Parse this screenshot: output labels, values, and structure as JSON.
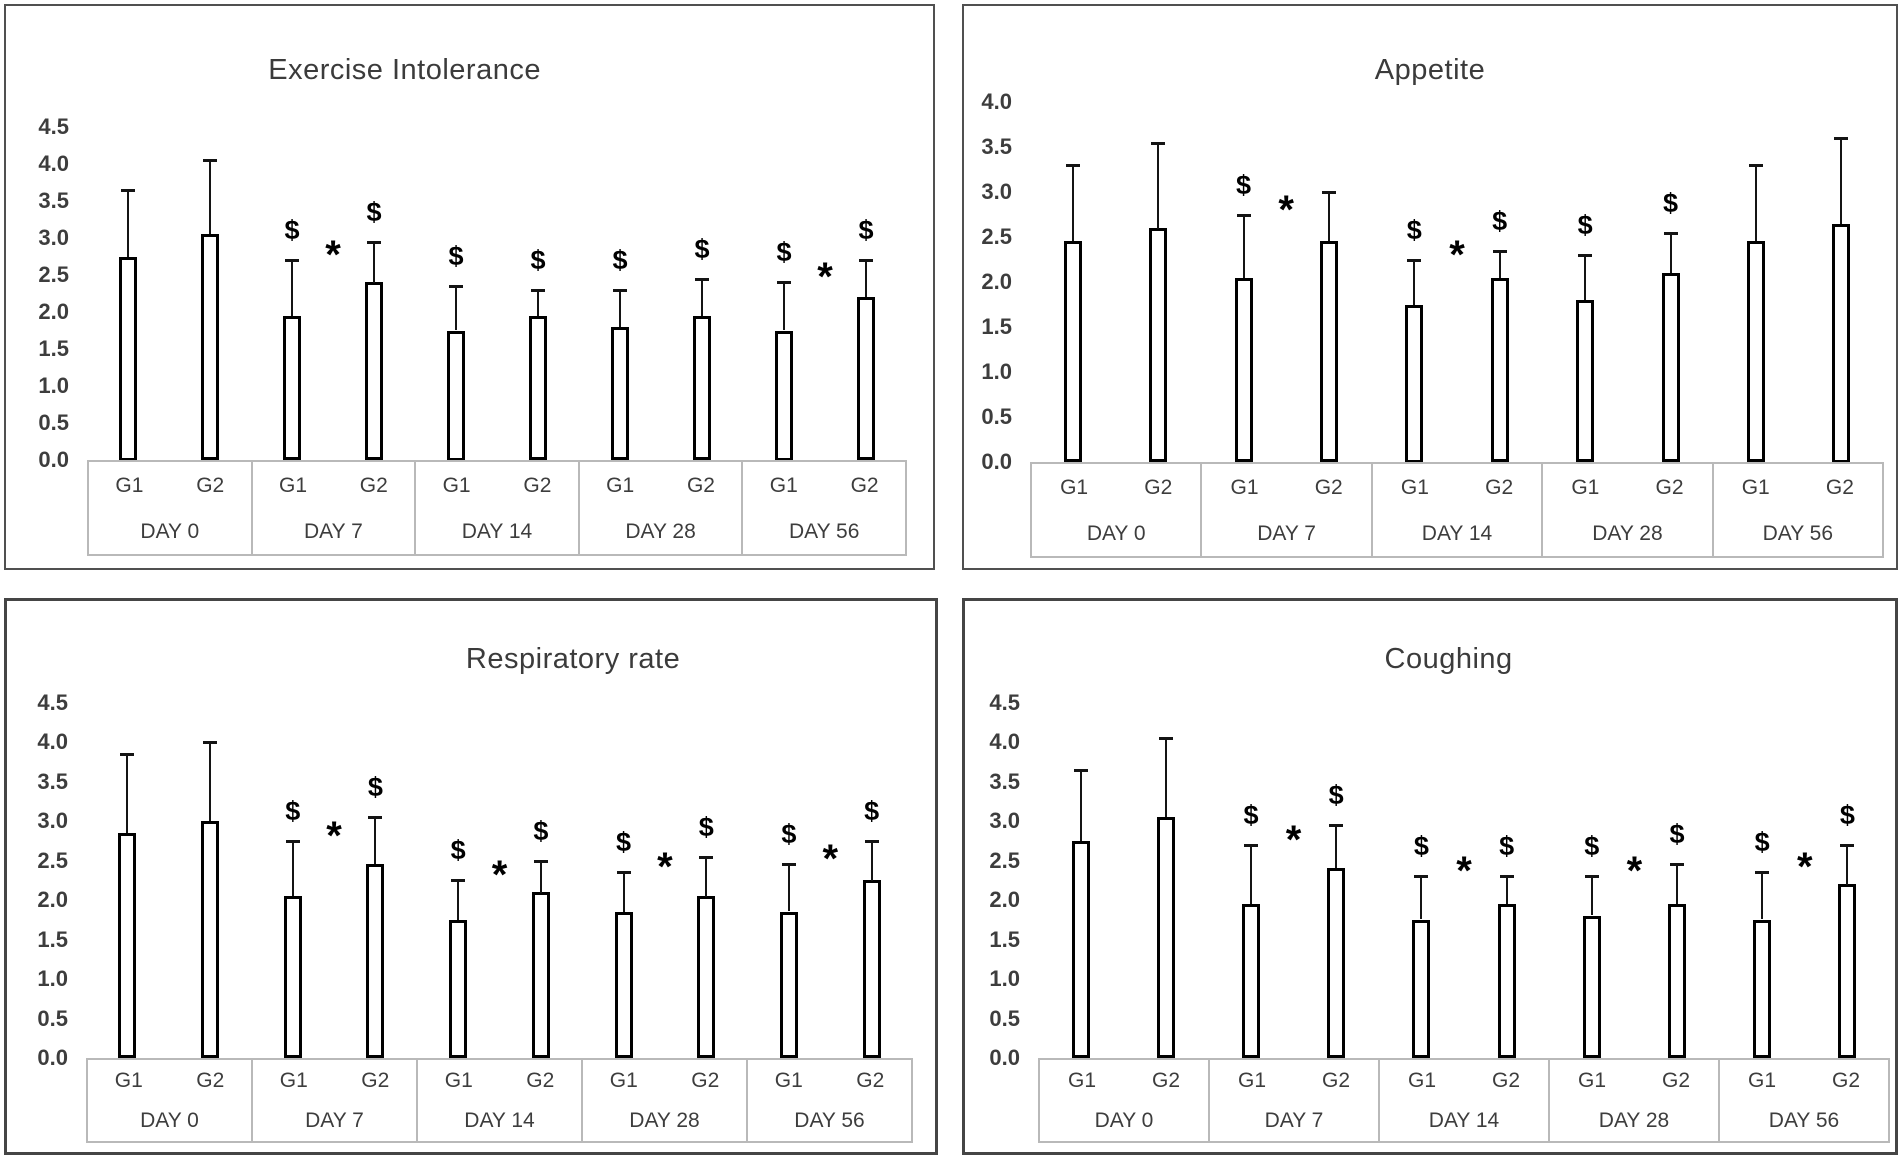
{
  "symbols": {
    "dollar": "$",
    "star": "*"
  },
  "chart_data": [
    {
      "type": "bar",
      "title": "Exercise Intolerance",
      "ylabel": "",
      "xlabel": "",
      "ylim": [
        0,
        4.5
      ],
      "grid": false,
      "legend": "none",
      "bar_fill": "#ffffff",
      "bar_stroke": "#000000",
      "y_ticks": [
        "4.5",
        "4.0",
        "3.5",
        "3.0",
        "2.5",
        "2.0",
        "1.5",
        "1.0",
        "0.5",
        "0.0"
      ],
      "categories": [
        "DAY 0",
        "DAY 7",
        "DAY 14",
        "DAY 28",
        "DAY 56"
      ],
      "series_labels": [
        "G1",
        "G2"
      ],
      "groups": [
        {
          "day": "DAY 0",
          "star": false,
          "bars": [
            {
              "label": "G1",
              "value": 2.75,
              "err_top": 3.65,
              "dollar": false
            },
            {
              "label": "G2",
              "value": 3.05,
              "err_top": 4.05,
              "dollar": false
            }
          ]
        },
        {
          "day": "DAY 7",
          "star": true,
          "bars": [
            {
              "label": "G1",
              "value": 1.95,
              "err_top": 2.7,
              "dollar": true
            },
            {
              "label": "G2",
              "value": 2.4,
              "err_top": 2.95,
              "dollar": true
            }
          ]
        },
        {
          "day": "DAY 14",
          "star": false,
          "bars": [
            {
              "label": "G1",
              "value": 1.75,
              "err_top": 2.35,
              "dollar": true
            },
            {
              "label": "G2",
              "value": 1.95,
              "err_top": 2.3,
              "dollar": true
            }
          ]
        },
        {
          "day": "DAY 28",
          "star": false,
          "bars": [
            {
              "label": "G1",
              "value": 1.8,
              "err_top": 2.3,
              "dollar": true
            },
            {
              "label": "G2",
              "value": 1.95,
              "err_top": 2.45,
              "dollar": true
            }
          ]
        },
        {
          "day": "DAY 56",
          "star": true,
          "bars": [
            {
              "label": "G1",
              "value": 1.75,
              "err_top": 2.4,
              "dollar": true
            },
            {
              "label": "G2",
              "value": 2.2,
              "err_top": 2.7,
              "dollar": true
            }
          ]
        }
      ]
    },
    {
      "type": "bar",
      "title": "Appetite",
      "ylabel": "",
      "xlabel": "",
      "ylim": [
        0,
        4.0
      ],
      "grid": false,
      "legend": "none",
      "bar_fill": "#ffffff",
      "bar_stroke": "#000000",
      "y_ticks": [
        "4.0",
        "3.5",
        "3.0",
        "2.5",
        "2.0",
        "1.5",
        "1.0",
        "0.5",
        "0.0"
      ],
      "categories": [
        "DAY 0",
        "DAY 7",
        "DAY 14",
        "DAY 28",
        "DAY 56"
      ],
      "series_labels": [
        "G1",
        "G2"
      ],
      "groups": [
        {
          "day": "DAY 0",
          "star": false,
          "bars": [
            {
              "label": "G1",
              "value": 2.45,
              "err_top": 3.3,
              "dollar": false
            },
            {
              "label": "G2",
              "value": 2.6,
              "err_top": 3.55,
              "dollar": false
            }
          ]
        },
        {
          "day": "DAY 7",
          "star": true,
          "bars": [
            {
              "label": "G1",
              "value": 2.05,
              "err_top": 2.75,
              "dollar": true
            },
            {
              "label": "G2",
              "value": 2.45,
              "err_top": 3.0,
              "dollar": false
            }
          ]
        },
        {
          "day": "DAY 14",
          "star": true,
          "bars": [
            {
              "label": "G1",
              "value": 1.75,
              "err_top": 2.25,
              "dollar": true
            },
            {
              "label": "G2",
              "value": 2.05,
              "err_top": 2.35,
              "dollar": true
            }
          ]
        },
        {
          "day": "DAY 28",
          "star": false,
          "bars": [
            {
              "label": "G1",
              "value": 1.8,
              "err_top": 2.3,
              "dollar": true
            },
            {
              "label": "G2",
              "value": 2.1,
              "err_top": 2.55,
              "dollar": true
            }
          ]
        },
        {
          "day": "DAY 56",
          "star": false,
          "bars": [
            {
              "label": "G1",
              "value": 2.45,
              "err_top": 3.3,
              "dollar": false
            },
            {
              "label": "G2",
              "value": 2.65,
              "err_top": 3.6,
              "dollar": false
            }
          ]
        }
      ]
    },
    {
      "type": "bar",
      "title": "Respiratory rate",
      "ylabel": "",
      "xlabel": "",
      "ylim": [
        0,
        4.5
      ],
      "grid": false,
      "legend": "none",
      "bar_fill": "#ffffff",
      "bar_stroke": "#000000",
      "y_ticks": [
        "4.5",
        "4.0",
        "3.5",
        "3.0",
        "2.5",
        "2.0",
        "1.5",
        "1.0",
        "0.5",
        "0.0"
      ],
      "categories": [
        "DAY 0",
        "DAY 7",
        "DAY 14",
        "DAY 28",
        "DAY 56"
      ],
      "series_labels": [
        "G1",
        "G2"
      ],
      "groups": [
        {
          "day": "DAY 0",
          "star": false,
          "bars": [
            {
              "label": "G1",
              "value": 2.85,
              "err_top": 3.85,
              "dollar": false
            },
            {
              "label": "G2",
              "value": 3.0,
              "err_top": 4.0,
              "dollar": false
            }
          ]
        },
        {
          "day": "DAY 7",
          "star": true,
          "bars": [
            {
              "label": "G1",
              "value": 2.05,
              "err_top": 2.75,
              "dollar": true
            },
            {
              "label": "G2",
              "value": 2.45,
              "err_top": 3.05,
              "dollar": true
            }
          ]
        },
        {
          "day": "DAY 14",
          "star": true,
          "bars": [
            {
              "label": "G1",
              "value": 1.75,
              "err_top": 2.25,
              "dollar": true
            },
            {
              "label": "G2",
              "value": 2.1,
              "err_top": 2.5,
              "dollar": true
            }
          ]
        },
        {
          "day": "DAY 28",
          "star": true,
          "bars": [
            {
              "label": "G1",
              "value": 1.85,
              "err_top": 2.35,
              "dollar": true
            },
            {
              "label": "G2",
              "value": 2.05,
              "err_top": 2.55,
              "dollar": true
            }
          ]
        },
        {
          "day": "DAY 56",
          "star": true,
          "bars": [
            {
              "label": "G1",
              "value": 1.85,
              "err_top": 2.45,
              "dollar": true
            },
            {
              "label": "G2",
              "value": 2.25,
              "err_top": 2.75,
              "dollar": true
            }
          ]
        }
      ]
    },
    {
      "type": "bar",
      "title": "Coughing",
      "ylabel": "",
      "xlabel": "",
      "ylim": [
        0,
        4.5
      ],
      "grid": false,
      "legend": "none",
      "bar_fill": "#ffffff",
      "bar_stroke": "#000000",
      "y_ticks": [
        "4.5",
        "4.0",
        "3.5",
        "3.0",
        "2.5",
        "2.0",
        "1.5",
        "1.0",
        "0.5",
        "0.0"
      ],
      "categories": [
        "DAY 0",
        "DAY 7",
        "DAY 14",
        "DAY 28",
        "DAY 56"
      ],
      "series_labels": [
        "G1",
        "G2"
      ],
      "groups": [
        {
          "day": "DAY 0",
          "star": false,
          "bars": [
            {
              "label": "G1",
              "value": 2.75,
              "err_top": 3.65,
              "dollar": false
            },
            {
              "label": "G2",
              "value": 3.05,
              "err_top": 4.05,
              "dollar": false
            }
          ]
        },
        {
          "day": "DAY 7",
          "star": true,
          "bars": [
            {
              "label": "G1",
              "value": 1.95,
              "err_top": 2.7,
              "dollar": true
            },
            {
              "label": "G2",
              "value": 2.4,
              "err_top": 2.95,
              "dollar": true
            }
          ]
        },
        {
          "day": "DAY 14",
          "star": true,
          "bars": [
            {
              "label": "G1",
              "value": 1.75,
              "err_top": 2.3,
              "dollar": true
            },
            {
              "label": "G2",
              "value": 1.95,
              "err_top": 2.3,
              "dollar": true
            }
          ]
        },
        {
          "day": "DAY 28",
          "star": true,
          "bars": [
            {
              "label": "G1",
              "value": 1.8,
              "err_top": 2.3,
              "dollar": true
            },
            {
              "label": "G2",
              "value": 1.95,
              "err_top": 2.45,
              "dollar": true
            }
          ]
        },
        {
          "day": "DAY 56",
          "star": true,
          "bars": [
            {
              "label": "G1",
              "value": 1.75,
              "err_top": 2.35,
              "dollar": true
            },
            {
              "label": "G2",
              "value": 2.2,
              "err_top": 2.7,
              "dollar": true
            }
          ]
        }
      ]
    }
  ]
}
